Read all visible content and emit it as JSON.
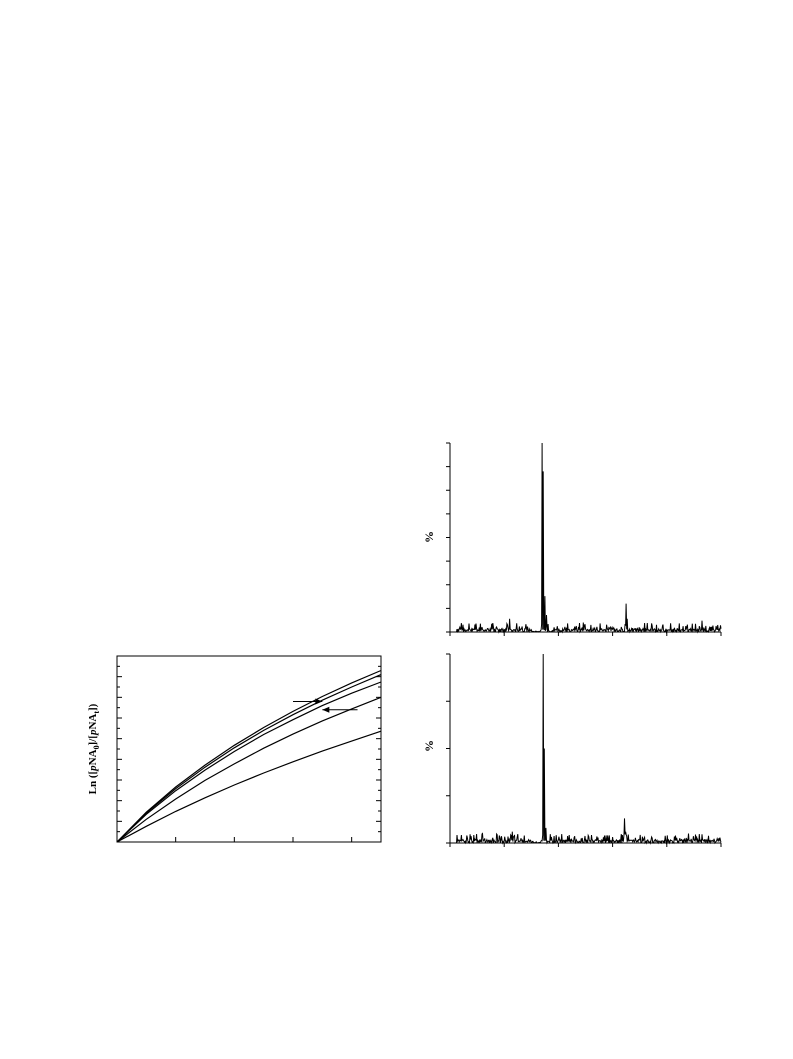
{
  "chart_data": [
    {
      "type": "line",
      "ylabel": "Ln ([pNA₀]/[pNAₜ])",
      "ylabel_parts": [
        {
          "t": "Ln ([",
          "sub": false,
          "italic": false
        },
        {
          "t": "p",
          "sub": false,
          "italic": true
        },
        {
          "t": "NA",
          "sub": false,
          "italic": false
        },
        {
          "t": "0",
          "sub": true,
          "italic": false
        },
        {
          "t": "]/[",
          "sub": false,
          "italic": false
        },
        {
          "t": "p",
          "sub": false,
          "italic": true
        },
        {
          "t": "NA",
          "sub": false,
          "italic": false
        },
        {
          "t": "t",
          "sub": true,
          "italic": false
        },
        {
          "t": "])",
          "sub": false,
          "italic": false
        }
      ],
      "xlabel": "",
      "xlim": [
        0,
        4.5
      ],
      "ylim": [
        0,
        4.5
      ],
      "x_major_ticks": [
        0,
        1,
        2,
        3,
        4
      ],
      "y_ticks_count": 19,
      "series": [
        {
          "x": [
            0,
            0.5,
            1,
            1.5,
            2,
            2.5,
            3,
            3.5,
            4,
            4.5
          ],
          "y": [
            0,
            0.72,
            1.33,
            1.86,
            2.34,
            2.77,
            3.16,
            3.52,
            3.85,
            4.15
          ]
        },
        {
          "x": [
            0,
            0.5,
            1,
            1.5,
            2,
            2.5,
            3,
            3.5,
            4,
            4.5
          ],
          "y": [
            0,
            0.7,
            1.29,
            1.81,
            2.28,
            2.7,
            3.08,
            3.43,
            3.75,
            4.05
          ]
        },
        {
          "x": [
            0,
            0.5,
            1,
            1.5,
            2,
            2.5,
            3,
            3.5,
            4,
            4.5
          ],
          "y": [
            0,
            0.67,
            1.24,
            1.74,
            2.19,
            2.6,
            2.96,
            3.3,
            3.6,
            3.87
          ]
        },
        {
          "x": [
            0,
            0.5,
            1,
            1.5,
            2,
            2.5,
            3,
            3.5,
            4,
            4.5
          ],
          "y": [
            0,
            0.55,
            1.04,
            1.49,
            1.89,
            2.27,
            2.61,
            2.93,
            3.22,
            3.5
          ]
        },
        {
          "x": [
            0,
            0.5,
            1,
            1.5,
            2,
            2.5,
            3,
            3.5,
            4,
            4.5
          ],
          "y": [
            0,
            0.38,
            0.74,
            1.07,
            1.38,
            1.67,
            1.94,
            2.2,
            2.44,
            2.68
          ]
        }
      ],
      "annotations": [
        {
          "type": "arrow",
          "direction": "right",
          "x_from": 3.0,
          "x_to": 3.5,
          "y": 3.4
        },
        {
          "type": "arrow",
          "direction": "left",
          "x_from": 4.1,
          "x_to": 3.5,
          "y": 3.2
        }
      ]
    },
    {
      "type": "line",
      "ylabel": "%",
      "xlabel": "",
      "xlim": [
        0,
        500
      ],
      "ylim": [
        0,
        100
      ],
      "x_ticks_count": 6,
      "y_ticks_count": 9,
      "noise_level": 3,
      "peaks": [
        {
          "x": 170,
          "y": 100
        },
        {
          "x": 172,
          "y": 85
        },
        {
          "x": 175,
          "y": 19
        },
        {
          "x": 178,
          "y": 9
        },
        {
          "x": 325,
          "y": 15
        },
        {
          "x": 327,
          "y": 7
        },
        {
          "x": 110,
          "y": 7
        },
        {
          "x": 246,
          "y": 5
        },
        {
          "x": 465,
          "y": 6
        }
      ]
    },
    {
      "type": "line",
      "ylabel": "%",
      "xlabel": "",
      "xlim": [
        0,
        500
      ],
      "ylim": [
        0,
        100
      ],
      "x_ticks_count": 6,
      "y_ticks_count": 5,
      "noise_level": 3,
      "peaks": [
        {
          "x": 172,
          "y": 100
        },
        {
          "x": 174,
          "y": 50
        },
        {
          "x": 177,
          "y": 8
        },
        {
          "x": 322,
          "y": 13
        },
        {
          "x": 324,
          "y": 6
        },
        {
          "x": 115,
          "y": 6
        },
        {
          "x": 60,
          "y": 5
        },
        {
          "x": 255,
          "y": 4
        },
        {
          "x": 440,
          "y": 5
        }
      ]
    }
  ]
}
